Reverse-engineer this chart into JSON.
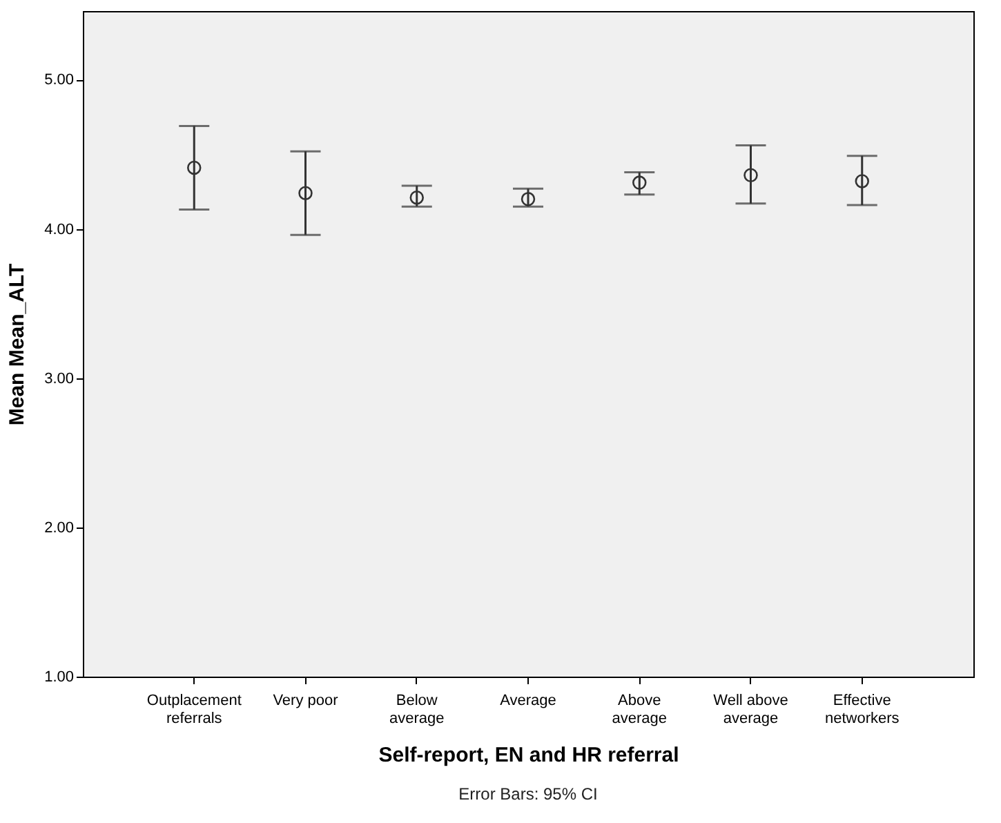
{
  "chart_data": {
    "type": "scatter",
    "xlabel": "Self-report, EN and HR referral",
    "ylabel": "Mean Mean_ALT",
    "categories": [
      "Outplacement referrals",
      "Very poor",
      "Below average",
      "Average",
      "Above average",
      "Well above average",
      "Effective networkers"
    ],
    "values": [
      4.41,
      4.24,
      4.21,
      4.2,
      4.31,
      4.36,
      4.32
    ],
    "errors": [
      [
        4.13,
        4.69
      ],
      [
        3.96,
        4.52
      ],
      [
        4.15,
        4.29
      ],
      [
        4.15,
        4.27
      ],
      [
        4.23,
        4.38
      ],
      [
        4.17,
        4.56
      ],
      [
        4.16,
        4.49
      ]
    ],
    "color": "#333333",
    "marker": "circle",
    "ylim": [
      1,
      5.46
    ],
    "yticks": [
      {
        "value": 1,
        "label": "1.00"
      },
      {
        "value": 2,
        "label": "2.00"
      },
      {
        "value": 3,
        "label": "3.00"
      },
      {
        "value": 4,
        "label": "4.00"
      },
      {
        "value": 5,
        "label": "5.00"
      }
    ],
    "grid": false,
    "annotations": [
      "Error Bars: 95% CI"
    ]
  }
}
